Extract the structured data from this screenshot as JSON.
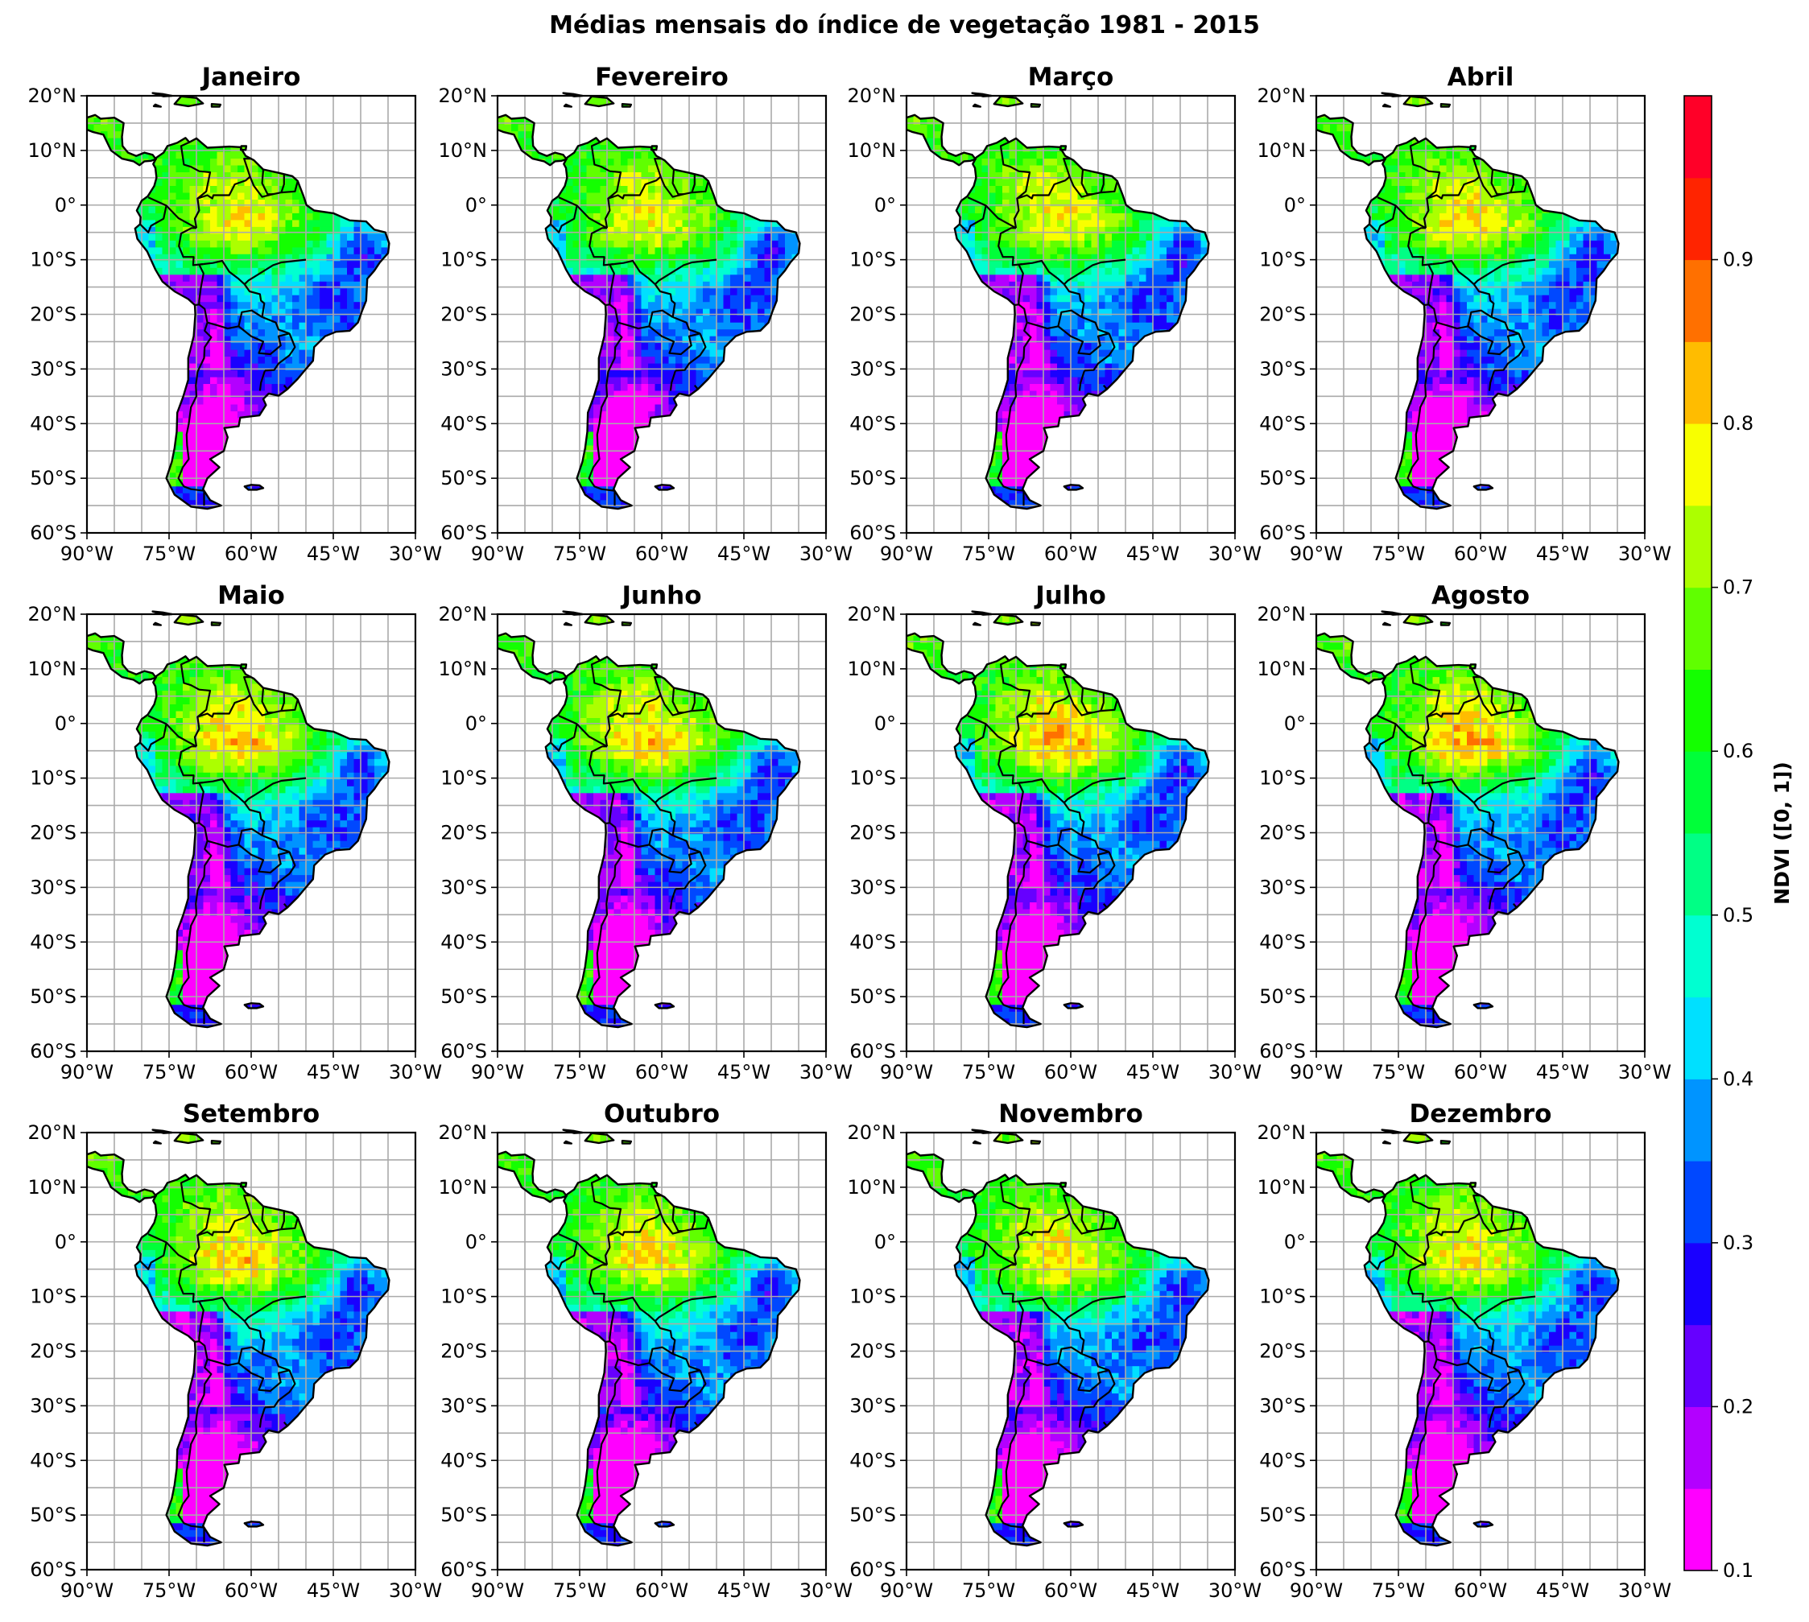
{
  "title": "Médias mensais do índice de vegetação 1981 - 2015",
  "map_extent": {
    "lon_min": -90,
    "lon_max": -30,
    "lat_min": -60,
    "lat_max": 20
  },
  "lon_tick_labels": [
    "90°W",
    "75°W",
    "60°W",
    "45°W",
    "30°W"
  ],
  "lat_tick_labels": [
    "20°N",
    "10°N",
    "0°",
    "10°S",
    "20°S",
    "30°S",
    "40°S",
    "50°S",
    "60°S"
  ],
  "panels": [
    {
      "month": "Janeiro",
      "amazon": 0.82,
      "dry": 0.18
    },
    {
      "month": "Fevereiro",
      "amazon": 0.82,
      "dry": 0.18
    },
    {
      "month": "Março",
      "amazon": 0.82,
      "dry": 0.17
    },
    {
      "month": "Abril",
      "amazon": 0.84,
      "dry": 0.19
    },
    {
      "month": "Maio",
      "amazon": 0.86,
      "dry": 0.19
    },
    {
      "month": "Junho",
      "amazon": 0.86,
      "dry": 0.18
    },
    {
      "month": "Julho",
      "amazon": 0.88,
      "dry": 0.17
    },
    {
      "month": "Agosto",
      "amazon": 0.87,
      "dry": 0.17
    },
    {
      "month": "Setembro",
      "amazon": 0.85,
      "dry": 0.16
    },
    {
      "month": "Outubro",
      "amazon": 0.84,
      "dry": 0.16
    },
    {
      "month": "Novembro",
      "amazon": 0.83,
      "dry": 0.16
    },
    {
      "month": "Dezembro",
      "amazon": 0.83,
      "dry": 0.17
    }
  ],
  "colorbar": {
    "label": "NDVI ([0, 1])",
    "min": 0.1,
    "max": 0.95,
    "step": 0.05,
    "tick_labels": [
      "0.1",
      "0.2",
      "0.3",
      "0.4",
      "0.5",
      "0.6",
      "0.7",
      "0.8",
      "0.9"
    ],
    "tick_values": [
      0.1,
      0.2,
      0.3,
      0.4,
      0.5,
      0.6,
      0.7,
      0.8,
      0.9
    ],
    "colors": [
      "#ff00ff",
      "#b300ff",
      "#6600ff",
      "#1a00ff",
      "#0048ff",
      "#0094ff",
      "#00e0ff",
      "#00ffd1",
      "#00ff85",
      "#00ff39",
      "#14ff00",
      "#60ff00",
      "#acff00",
      "#f8ff00",
      "#ffbc00",
      "#ff7000",
      "#ff2400",
      "#ff0028"
    ]
  }
}
